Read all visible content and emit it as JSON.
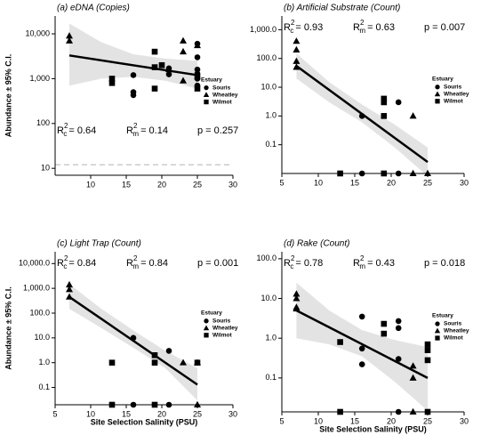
{
  "chart_data": [
    {
      "type": "scatter",
      "title": "(a) eDNA (Copies)",
      "y_label": "Abundance ± 95% C.I.",
      "log_y": true,
      "legend": "right",
      "legend_title": "Estuary",
      "stats_position": "bottom",
      "xlim": [
        5,
        30
      ],
      "xticks": [
        10,
        15,
        20,
        25,
        30
      ],
      "ylim": [
        7,
        25000
      ],
      "yticks": [
        {
          "value": 10000,
          "label": "10,000"
        },
        {
          "value": 1000,
          "label": "1,000"
        },
        100,
        10
      ],
      "series": [
        {
          "name": "Souris",
          "marker": "circle",
          "color": "#000000",
          "x": [
            16,
            16,
            16,
            21,
            21,
            25,
            25,
            25,
            25,
            25,
            25
          ],
          "values": [
            1200,
            500,
            430,
            1700,
            1250,
            6000,
            3000,
            1600,
            1300,
            1000,
            700
          ]
        },
        {
          "name": "Wheatley",
          "marker": "triangle",
          "color": "#000000",
          "x": [
            7,
            7,
            23,
            23,
            25,
            23,
            21
          ],
          "values": [
            9000,
            7000,
            7000,
            4000,
            5500,
            900,
            1600
          ]
        },
        {
          "name": "Wilmot",
          "marker": "square",
          "color": "#000000",
          "x": [
            13,
            13,
            19,
            19,
            19,
            20,
            25,
            25
          ],
          "values": [
            1000,
            800,
            4000,
            1800,
            600,
            2000,
            1100,
            600
          ]
        }
      ],
      "fit": {
        "x": [
          7,
          25
        ],
        "values": [
          3300,
          1200
        ]
      },
      "ci": {
        "x": [
          7,
          11.5,
          16,
          20.5,
          25
        ],
        "upper": [
          17000,
          6500,
          3500,
          2800,
          2500
        ],
        "lower": [
          700,
          1000,
          1100,
          900,
          600
        ]
      },
      "reference_line": 12,
      "stats": [
        {
          "base": "R",
          "sup": "2",
          "sub": "c",
          "text": "= 0.64"
        },
        {
          "base": "R",
          "sup": "2",
          "sub": "m",
          "text": "= 0.14"
        },
        {
          "text": "p = 0.257"
        }
      ]
    },
    {
      "type": "scatter",
      "title": "(b) Artificial Substrate (Count)",
      "log_y": true,
      "legend": "right",
      "legend_title": "Estuary",
      "stats_position": "top",
      "xlim": [
        5,
        30
      ],
      "xticks": [
        5,
        10,
        15,
        20,
        25,
        30
      ],
      "ylim": [
        0.01,
        3000
      ],
      "yticks": [
        {
          "value": 1000,
          "label": "1,000.0"
        },
        {
          "value": 100,
          "label": "100.0"
        },
        {
          "value": 10,
          "label": "10.0"
        },
        {
          "value": 1,
          "label": "1.0"
        },
        0.1
      ],
      "series": [
        {
          "name": "Souris",
          "marker": "circle",
          "color": "#000000",
          "x": [
            16,
            21,
            16,
            21
          ],
          "values": [
            1,
            3,
            0.01,
            0.01
          ]
        },
        {
          "name": "Wheatley",
          "marker": "triangle",
          "color": "#000000",
          "x": [
            7,
            7,
            7,
            7,
            23,
            23,
            25
          ],
          "values": [
            400,
            200,
            80,
            50,
            1,
            0.01,
            0.01
          ]
        },
        {
          "name": "Wilmot",
          "marker": "square",
          "color": "#000000",
          "x": [
            19,
            19,
            19,
            13,
            19
          ],
          "values": [
            4,
            3,
            1,
            0.01,
            0.01
          ]
        }
      ],
      "fit": {
        "x": [
          7,
          25
        ],
        "values": [
          55,
          0.025
        ]
      },
      "ci": {
        "x": [
          7,
          11.5,
          16,
          20.5,
          25
        ],
        "upper": [
          150,
          15,
          2.5,
          0.5,
          0.08
        ],
        "lower": [
          20,
          3,
          0.6,
          0.08,
          0.008
        ]
      },
      "stats": [
        {
          "base": "R",
          "sup": "2",
          "sub": "c",
          "text": "= 0.93"
        },
        {
          "base": "R",
          "sup": "2",
          "sub": "m",
          "text": "= 0.63"
        },
        {
          "text": "p = 0.007"
        }
      ]
    },
    {
      "type": "scatter",
      "title": "(c) Light Trap (Count)",
      "y_label": "Abundance ± 95% C.I.",
      "x_label": "Site Selection Salinity (PSU)",
      "log_y": true,
      "legend": "right",
      "legend_title": "Estuary",
      "stats_position": "top",
      "xlim": [
        5,
        30
      ],
      "xticks": [
        5,
        10,
        15,
        20,
        25,
        30
      ],
      "ylim": [
        0.02,
        30000
      ],
      "yticks": [
        {
          "value": 10000,
          "label": "10,000.0"
        },
        {
          "value": 1000,
          "label": "1,000.0"
        },
        {
          "value": 100,
          "label": "100.0"
        },
        {
          "value": 10,
          "label": "10.0"
        },
        {
          "value": 1,
          "label": "1.0"
        },
        0.1
      ],
      "series": [
        {
          "name": "Souris",
          "marker": "circle",
          "color": "#000000",
          "x": [
            16,
            21,
            16,
            21
          ],
          "values": [
            10,
            3,
            0.02,
            0.02
          ]
        },
        {
          "name": "Wheatley",
          "marker": "triangle",
          "color": "#000000",
          "x": [
            7,
            7,
            7,
            23,
            25,
            25
          ],
          "values": [
            1400,
            900,
            450,
            1,
            1,
            0.02
          ]
        },
        {
          "name": "Wilmot",
          "marker": "square",
          "color": "#000000",
          "x": [
            13,
            19,
            19,
            25,
            13,
            19
          ],
          "values": [
            1,
            2,
            1,
            1,
            0.02,
            0.02
          ]
        }
      ],
      "fit": {
        "x": [
          7,
          25
        ],
        "values": [
          450,
          0.13
        ]
      },
      "ci": {
        "x": [
          7,
          11.5,
          16,
          20.5,
          25
        ],
        "upper": [
          1500,
          150,
          20,
          3,
          0.6
        ],
        "lower": [
          150,
          25,
          4,
          0.6,
          0.03
        ]
      },
      "stats": [
        {
          "base": "R",
          "sup": "2",
          "sub": "c",
          "text": "= 0.84"
        },
        {
          "base": "R",
          "sup": "2",
          "sub": "m",
          "text": "= 0.84"
        },
        {
          "text": "p = 0.001"
        }
      ]
    },
    {
      "type": "scatter",
      "title": "(d) Rake (Count)",
      "x_label": "Site Selection Salinity (PSU)",
      "log_y": true,
      "legend": "right",
      "legend_title": "Estuary",
      "stats_position": "top",
      "xlim": [
        5,
        30
      ],
      "xticks": [
        5,
        10,
        15,
        20,
        25,
        30
      ],
      "ylim": [
        0.014,
        150
      ],
      "yticks": [
        {
          "value": 100,
          "label": "100.0"
        },
        {
          "value": 10,
          "label": "10.0"
        },
        {
          "value": 1,
          "label": "1.0"
        },
        0.1
      ],
      "series": [
        {
          "name": "Souris",
          "marker": "circle",
          "color": "#000000",
          "x": [
            16,
            16,
            16,
            21,
            21,
            21,
            21
          ],
          "values": [
            3.5,
            0.55,
            0.22,
            2.7,
            1.8,
            0.3,
            0.014
          ]
        },
        {
          "name": "Wheatley",
          "marker": "triangle",
          "color": "#000000",
          "x": [
            7,
            7,
            7,
            7,
            23,
            23,
            23
          ],
          "values": [
            13,
            10,
            6,
            5.5,
            0.2,
            0.1,
            0.014
          ]
        },
        {
          "name": "Wilmot",
          "marker": "square",
          "color": "#000000",
          "x": [
            13,
            19,
            19,
            25,
            25,
            25,
            13,
            25
          ],
          "values": [
            0.8,
            2.3,
            1.3,
            0.7,
            0.5,
            0.28,
            0.014,
            0.014
          ]
        }
      ],
      "fit": {
        "x": [
          7,
          25
        ],
        "values": [
          5,
          0.1
        ]
      },
      "ci": {
        "x": [
          7,
          11.5,
          16,
          20.5,
          25
        ],
        "upper": [
          25,
          5,
          1.6,
          0.9,
          0.6
        ],
        "lower": [
          1,
          0.7,
          0.35,
          0.08,
          0.015
        ]
      },
      "stats": [
        {
          "base": "R",
          "sup": "2",
          "sub": "c",
          "text": "= 0.78"
        },
        {
          "base": "R",
          "sup": "2",
          "sub": "m",
          "text": "= 0.43"
        },
        {
          "text": "p = 0.018"
        }
      ]
    }
  ]
}
